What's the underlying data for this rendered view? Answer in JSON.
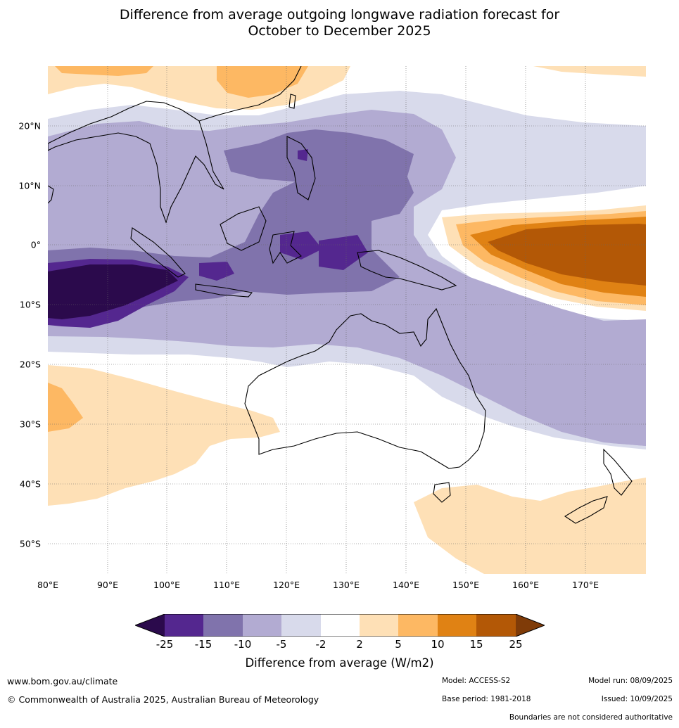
{
  "title": {
    "line1": "Difference from average outgoing longwave radiation forecast for",
    "line2": "October to December 2025"
  },
  "map": {
    "region": "Indian Ocean, Maritime Continent, Australia and Western Pacific",
    "lat_labels": [
      "20°N",
      "10°N",
      "0°",
      "10°S",
      "20°S",
      "30°S",
      "40°S",
      "50°S"
    ],
    "lon_labels": [
      "80°E",
      "90°E",
      "100°E",
      "110°E",
      "120°E",
      "130°E",
      "140°E",
      "150°E",
      "160°E",
      "170°E"
    ]
  },
  "legend": {
    "ticks": [
      "-25",
      "-15",
      "-10",
      "-5",
      "-2",
      "2",
      "5",
      "10",
      "15",
      "25"
    ],
    "colors": [
      "#2b0a4c",
      "#54278f",
      "#8073ac",
      "#b2abd2",
      "#d8daeb",
      "#ffffff",
      "#fee0b6",
      "#fdb863",
      "#e08214",
      "#b35806",
      "#7f3b08"
    ],
    "label": "Difference from average (W/m2)"
  },
  "footer": {
    "website": "www.bom.gov.au/climate",
    "copyright": "© Commonwealth of Australia 2025, Australian Bureau of Meteorology",
    "model": "Model: ACCESS-S2",
    "base_period": "Base period: 1981-2018",
    "model_run": "Model run: 08/09/2025",
    "issued": "Issued: 10/09/2025",
    "disclaimer": "Boundaries are not considered authoritative"
  }
}
